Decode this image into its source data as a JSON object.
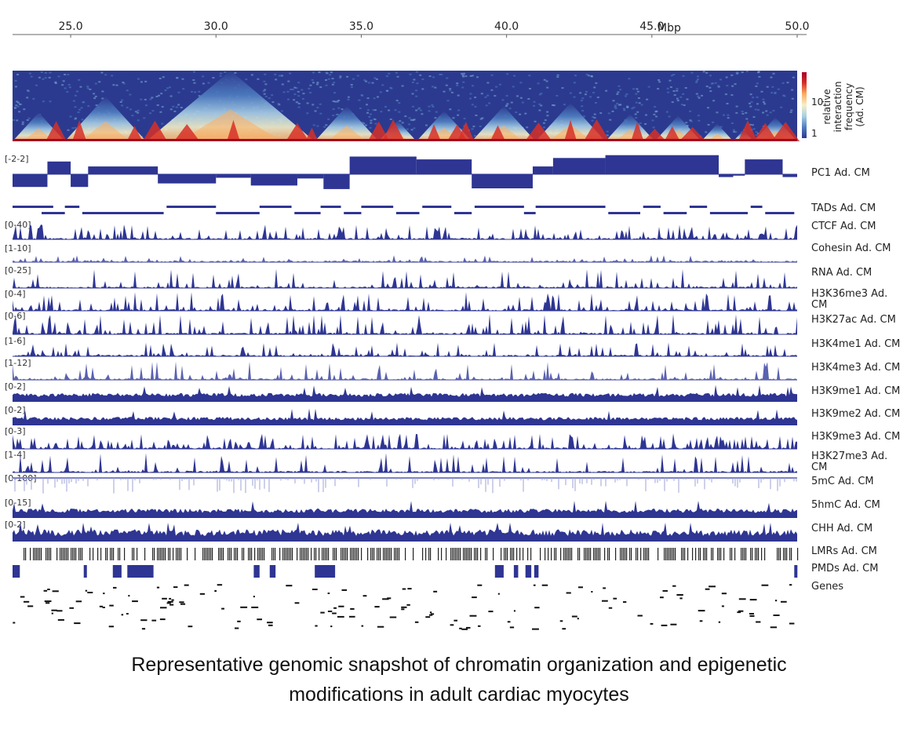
{
  "figure": {
    "axis": {
      "ticks": [
        "25.0",
        "30.0",
        "35.0",
        "40.0",
        "45.0",
        "50.0"
      ],
      "tick_values": [
        25.0,
        30.0,
        35.0,
        40.0,
        45.0,
        50.0
      ],
      "unit": "Mbp",
      "range": [
        23.0,
        50.0
      ]
    },
    "heatmap": {
      "colorbar_label": [
        "relative",
        "interaction",
        "frequency",
        "(Ad. CM)"
      ],
      "colorbar_ticks": [
        "10",
        "1"
      ],
      "colormap": [
        "#2b3a8f",
        "#4f7fc1",
        "#a9cfe5",
        "#f5f0c8",
        "#fdae61",
        "#d73027",
        "#a50026"
      ],
      "domains_mbp": [
        [
          23.0,
          24.8
        ],
        [
          24.8,
          27.6
        ],
        [
          27.6,
          33.4
        ],
        [
          33.4,
          35.6
        ],
        [
          35.6,
          36.9
        ],
        [
          36.9,
          38.8
        ],
        [
          38.8,
          41.0
        ],
        [
          41.0,
          43.4
        ],
        [
          43.4,
          45.1
        ],
        [
          45.1,
          46.7
        ],
        [
          46.7,
          47.8
        ],
        [
          47.8,
          48.5
        ],
        [
          48.5,
          50.0
        ]
      ]
    },
    "tracks": [
      {
        "label": "PC1 Ad. CM",
        "range": "[-2-2]"
      },
      {
        "label": "TADs Ad. CM",
        "range": ""
      },
      {
        "label": "CTCF Ad. CM",
        "range": "[0-40]"
      },
      {
        "label": "Cohesin Ad. CM",
        "range": "[1-10]"
      },
      {
        "label": "RNA Ad. CM",
        "range": "[0-25]"
      },
      {
        "label": "H3K36me3 Ad. CM",
        "range": "[0-4]"
      },
      {
        "label": "H3K27ac Ad. CM",
        "range": "[0-6]"
      },
      {
        "label": "H3K4me1 Ad. CM",
        "range": "[1-6]"
      },
      {
        "label": "H3K4me3 Ad. CM",
        "range": "[1-12]"
      },
      {
        "label": "H3K9me1 Ad. CM",
        "range": "[0-2]"
      },
      {
        "label": "H3K9me2 Ad. CM",
        "range": "[0-2]"
      },
      {
        "label": "H3K9me3 Ad. CM",
        "range": "[0-3]"
      },
      {
        "label": "H3K27me3 Ad. CM",
        "range": "[1-4]"
      },
      {
        "label": "5mC Ad. CM",
        "range": "[0-100]"
      },
      {
        "label": "5hmC Ad. CM",
        "range": "[0-15]"
      },
      {
        "label": "CHH Ad. CM",
        "range": "[0-2]"
      },
      {
        "label": "LMRs Ad. CM",
        "range": ""
      },
      {
        "label": "PMDs Ad. CM",
        "range": ""
      },
      {
        "label": "Genes",
        "range": ""
      }
    ],
    "pc1_segments_mbp": [
      {
        "start": 23.0,
        "end": 24.2,
        "value": -0.9
      },
      {
        "start": 24.2,
        "end": 25.0,
        "value": 0.9
      },
      {
        "start": 25.0,
        "end": 25.6,
        "value": -0.9
      },
      {
        "start": 25.6,
        "end": 28.0,
        "value": 0.55
      },
      {
        "start": 28.0,
        "end": 30.0,
        "value": -0.65
      },
      {
        "start": 30.0,
        "end": 31.2,
        "value": -0.25
      },
      {
        "start": 31.2,
        "end": 32.8,
        "value": -0.8
      },
      {
        "start": 32.8,
        "end": 33.7,
        "value": -0.3
      },
      {
        "start": 33.7,
        "end": 34.6,
        "value": -1.05
      },
      {
        "start": 34.6,
        "end": 36.9,
        "value": 1.25
      },
      {
        "start": 36.9,
        "end": 38.8,
        "value": 1.05
      },
      {
        "start": 38.8,
        "end": 40.9,
        "value": -1.0
      },
      {
        "start": 40.9,
        "end": 41.6,
        "value": 0.55
      },
      {
        "start": 41.6,
        "end": 43.4,
        "value": 1.15
      },
      {
        "start": 43.4,
        "end": 47.3,
        "value": 1.35
      },
      {
        "start": 47.3,
        "end": 47.8,
        "value": -0.2
      },
      {
        "start": 47.8,
        "end": 48.2,
        "value": -0.1
      },
      {
        "start": 48.2,
        "end": 49.5,
        "value": 1.05
      },
      {
        "start": 49.5,
        "end": 50.0,
        "value": -0.2
      }
    ],
    "tad_segments_mbp": [
      {
        "start": 23.0,
        "end": 24.4
      },
      {
        "start": 24.0,
        "end": 24.8
      },
      {
        "start": 24.8,
        "end": 25.3
      },
      {
        "start": 25.4,
        "end": 28.2
      },
      {
        "start": 28.3,
        "end": 30.0
      },
      {
        "start": 30.0,
        "end": 31.5
      },
      {
        "start": 31.5,
        "end": 32.6
      },
      {
        "start": 32.7,
        "end": 33.6
      },
      {
        "start": 33.6,
        "end": 34.3
      },
      {
        "start": 34.4,
        "end": 35.0
      },
      {
        "start": 35.0,
        "end": 36.1
      },
      {
        "start": 36.2,
        "end": 37.0
      },
      {
        "start": 37.1,
        "end": 38.1
      },
      {
        "start": 38.2,
        "end": 38.8
      },
      {
        "start": 38.9,
        "end": 40.6
      },
      {
        "start": 40.6,
        "end": 41.0
      },
      {
        "start": 41.0,
        "end": 43.4
      },
      {
        "start": 43.5,
        "end": 44.6
      },
      {
        "start": 44.7,
        "end": 45.3
      },
      {
        "start": 45.4,
        "end": 46.2
      },
      {
        "start": 46.3,
        "end": 46.9
      },
      {
        "start": 47.0,
        "end": 48.3
      },
      {
        "start": 48.4,
        "end": 48.8
      },
      {
        "start": 48.9,
        "end": 49.9
      }
    ],
    "pmd_blocks_mbp": [
      {
        "start": 23.0,
        "end": 23.25
      },
      {
        "start": 25.45,
        "end": 25.55
      },
      {
        "start": 26.45,
        "end": 26.75
      },
      {
        "start": 26.95,
        "end": 27.85
      },
      {
        "start": 31.3,
        "end": 31.5
      },
      {
        "start": 31.85,
        "end": 32.05
      },
      {
        "start": 33.4,
        "end": 34.1
      },
      {
        "start": 39.6,
        "end": 39.9
      },
      {
        "start": 40.25,
        "end": 40.4
      },
      {
        "start": 40.65,
        "end": 40.85
      },
      {
        "start": 40.95,
        "end": 41.1
      },
      {
        "start": 49.9,
        "end": 50.0
      }
    ],
    "hotspots_mbp": [
      24.5,
      25.3,
      27.2,
      27.9,
      29.0,
      30.6,
      32.8,
      33.3,
      35.6,
      36.1,
      37.5,
      38.3,
      38.6,
      39.7,
      41.1,
      42.2,
      43.1,
      44.5,
      45.1,
      45.7,
      46.4,
      48.3,
      48.9,
      49.6
    ]
  },
  "caption": {
    "line1": "Representative genomic snapshot of chromatin organization and epigenetic",
    "line2": "modifications in adult cardiac myocytes"
  }
}
